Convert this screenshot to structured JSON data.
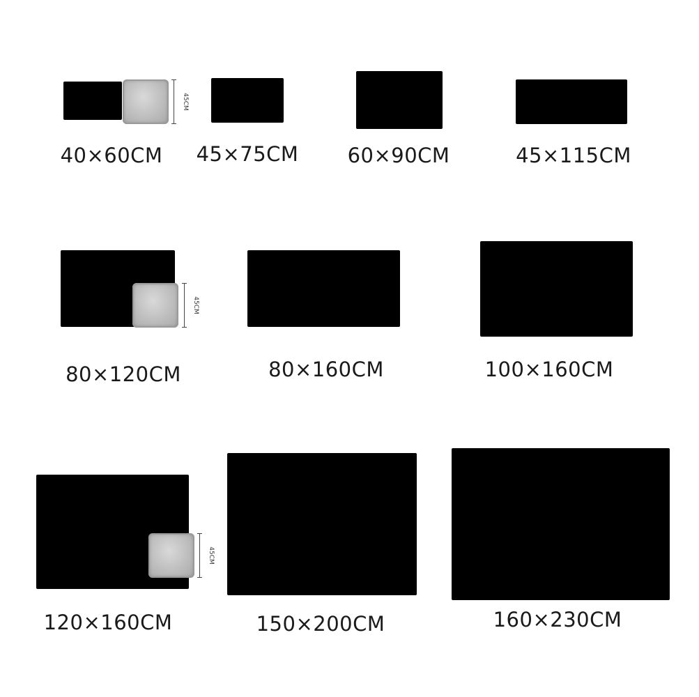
{
  "sizes": [
    {
      "label": "40×60CM"
    },
    {
      "label": "45×75CM"
    },
    {
      "label": "60×90CM"
    },
    {
      "label": "45×115CM"
    },
    {
      "label": "80×120CM"
    },
    {
      "label": "80×160CM"
    },
    {
      "label": "100×160CM"
    },
    {
      "label": "120×160CM"
    },
    {
      "label": "150×200CM"
    },
    {
      "label": "160×230CM"
    }
  ],
  "pillow": {
    "dimension_label": "45CM"
  },
  "colors": {
    "rug": "#000000",
    "pillow": "#bdbdbd",
    "text": "#1a1a1a"
  }
}
